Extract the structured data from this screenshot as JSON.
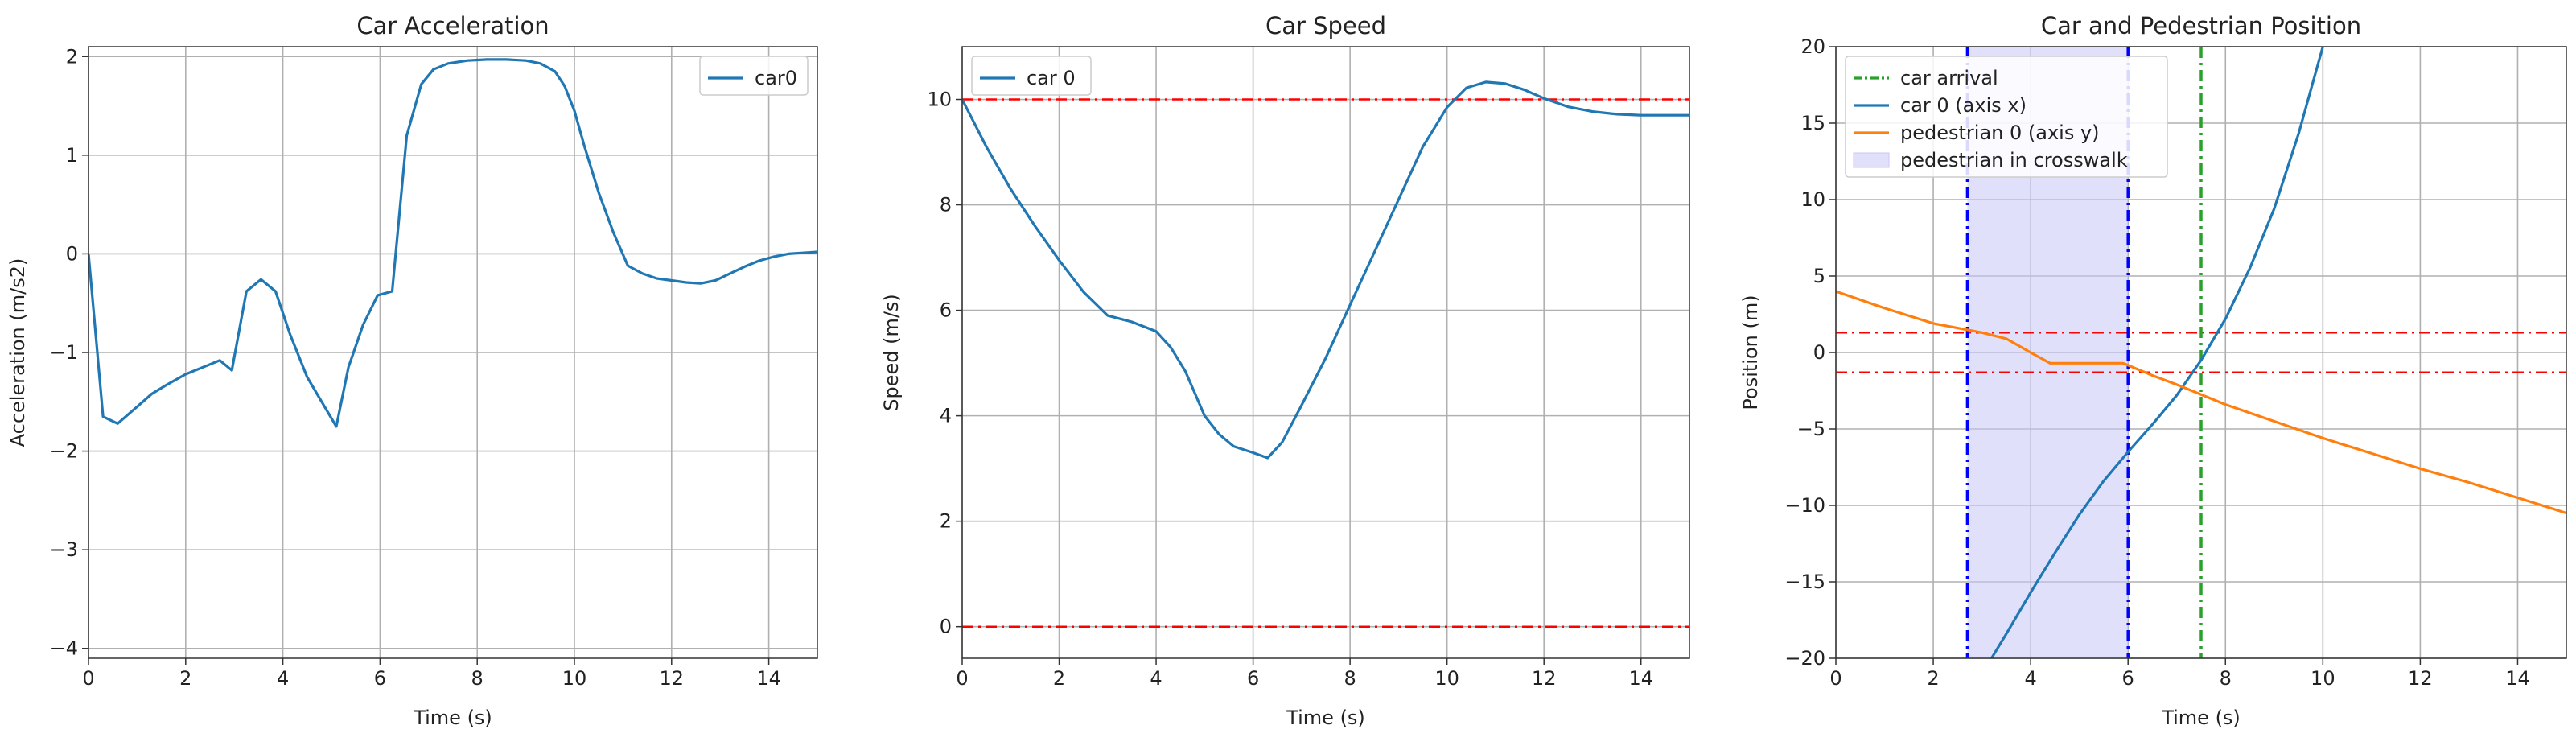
{
  "chart_data": [
    {
      "type": "line",
      "title": "Car Acceleration",
      "xlabel": "Time (s)",
      "ylabel": "Acceleration (m/s2)",
      "xlim": [
        0,
        15
      ],
      "ylim": [
        -4.1,
        2.1
      ],
      "xticks": [
        0,
        2,
        4,
        6,
        8,
        10,
        12,
        14
      ],
      "yticks": [
        -4,
        -3,
        -2,
        -1,
        0,
        1,
        2
      ],
      "grid": true,
      "legend": "top-right",
      "series": [
        {
          "name": "car0",
          "color": "#1f77b4",
          "x": [
            0,
            0.3,
            0.6,
            1.0,
            1.3,
            1.6,
            2.0,
            2.4,
            2.7,
            2.95,
            3.25,
            3.55,
            3.85,
            4.15,
            4.5,
            4.8,
            5.1,
            5.35,
            5.65,
            5.95,
            6.25,
            6.55,
            6.85,
            7.1,
            7.4,
            7.8,
            8.2,
            8.6,
            9.0,
            9.3,
            9.6,
            9.8,
            10.0,
            10.2,
            10.5,
            10.8,
            11.1,
            11.4,
            11.7,
            12.0,
            12.3,
            12.6,
            12.9,
            13.2,
            13.5,
            13.8,
            14.1,
            14.4,
            14.7,
            15.0
          ],
          "y": [
            0,
            -1.65,
            -1.72,
            -1.55,
            -1.42,
            -1.33,
            -1.22,
            -1.14,
            -1.08,
            -1.18,
            -0.38,
            -0.26,
            -0.38,
            -0.82,
            -1.25,
            -1.5,
            -1.75,
            -1.15,
            -0.72,
            -0.42,
            -0.38,
            1.2,
            1.72,
            1.87,
            1.93,
            1.96,
            1.97,
            1.97,
            1.96,
            1.93,
            1.85,
            1.7,
            1.45,
            1.1,
            0.62,
            0.22,
            -0.12,
            -0.2,
            -0.25,
            -0.27,
            -0.29,
            -0.3,
            -0.27,
            -0.2,
            -0.13,
            -0.07,
            -0.03,
            0.0,
            0.01,
            0.02
          ]
        }
      ],
      "hlines": []
    },
    {
      "type": "line",
      "title": "Car Speed",
      "xlabel": "Time (s)",
      "ylabel": "Speed (m/s)",
      "xlim": [
        0,
        15
      ],
      "ylim": [
        -0.6,
        11
      ],
      "xticks": [
        0,
        2,
        4,
        6,
        8,
        10,
        12,
        14
      ],
      "yticks": [
        0,
        2,
        4,
        6,
        8,
        10
      ],
      "grid": true,
      "legend": "top-left",
      "series": [
        {
          "name": "car 0",
          "color": "#1f77b4",
          "x": [
            0,
            0.5,
            1.0,
            1.5,
            2.0,
            2.5,
            3.0,
            3.5,
            4.0,
            4.3,
            4.6,
            5.0,
            5.3,
            5.6,
            6.0,
            6.3,
            6.6,
            7.0,
            7.5,
            8.0,
            8.5,
            9.0,
            9.5,
            10.0,
            10.4,
            10.8,
            11.2,
            11.6,
            12.0,
            12.5,
            13.0,
            13.5,
            14.0,
            14.5,
            15.0
          ],
          "y": [
            10.0,
            9.1,
            8.3,
            7.6,
            6.95,
            6.35,
            5.9,
            5.78,
            5.6,
            5.3,
            4.85,
            4.0,
            3.65,
            3.42,
            3.3,
            3.2,
            3.5,
            4.2,
            5.1,
            6.1,
            7.1,
            8.1,
            9.1,
            9.85,
            10.22,
            10.33,
            10.3,
            10.18,
            10.02,
            9.86,
            9.77,
            9.72,
            9.7,
            9.7,
            9.7
          ]
        }
      ],
      "hlines": [
        {
          "y": 10,
          "color": "#ff0000"
        },
        {
          "y": 0,
          "color": "#ff0000"
        }
      ]
    },
    {
      "type": "line",
      "title": "Car and Pedestrian Position",
      "xlabel": "Time (s)",
      "ylabel": "Position (m)",
      "xlim": [
        0,
        15
      ],
      "ylim": [
        -20,
        20
      ],
      "xticks": [
        0,
        2,
        4,
        6,
        8,
        10,
        12,
        14
      ],
      "yticks": [
        -20,
        -15,
        -10,
        -5,
        0,
        5,
        10,
        15,
        20
      ],
      "grid": true,
      "legend": "top-left",
      "legend_entries": [
        "car arrival",
        "car 0 (axis x)",
        "pedestrian 0 (axis y)",
        "pedestrian in crosswalk"
      ],
      "series": [
        {
          "name": "car 0 (axis x)",
          "color": "#1f77b4",
          "x": [
            3.1,
            3.5,
            4.0,
            4.5,
            5.0,
            5.5,
            6.0,
            6.5,
            7.0,
            7.5,
            8.0,
            8.5,
            9.0,
            9.5,
            10.0
          ],
          "y": [
            -20.5,
            -18.4,
            -15.7,
            -13.1,
            -10.6,
            -8.4,
            -6.5,
            -4.7,
            -2.8,
            -0.5,
            2.2,
            5.5,
            9.4,
            14.3,
            20.0
          ]
        },
        {
          "name": "pedestrian 0 (axis y)",
          "color": "#ff7f0e",
          "x": [
            0,
            1,
            2,
            3,
            3.5,
            4.0,
            4.4,
            5.2,
            5.9,
            6.5,
            7.0,
            8.0,
            9.0,
            10.0,
            11.0,
            12.0,
            13.0,
            14.0,
            15.0
          ],
          "y": [
            4.0,
            2.9,
            1.9,
            1.3,
            0.9,
            0.0,
            -0.7,
            -0.7,
            -0.7,
            -1.5,
            -2.1,
            -3.4,
            -4.5,
            -5.6,
            -6.6,
            -7.6,
            -8.5,
            -9.5,
            -10.5
          ]
        }
      ],
      "vlines": [
        {
          "x": 2.7,
          "color": "#0000ff"
        },
        {
          "x": 6.0,
          "color": "#0000ff"
        },
        {
          "x": 7.5,
          "color": "#2ca02c"
        }
      ],
      "hlines": [
        {
          "y": 1.3,
          "color": "#ff0000"
        },
        {
          "y": -1.3,
          "color": "#ff0000"
        }
      ],
      "span": {
        "x0": 2.7,
        "x1": 6.0,
        "color": "#c7c7f5"
      }
    }
  ]
}
